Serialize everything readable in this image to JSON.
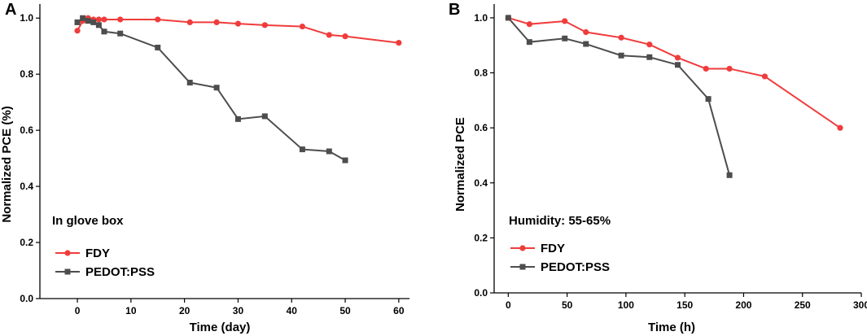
{
  "chart_data": [
    {
      "panel": "A",
      "type": "line",
      "xlabel": "Time (day)",
      "ylabel": "Normalized PCE (%)",
      "xlim": [
        -7,
        62
      ],
      "ylim": [
        0.0,
        1.05
      ],
      "xticks": [
        0,
        10,
        20,
        30,
        40,
        50,
        60
      ],
      "yticks": [
        0.0,
        0.2,
        0.4,
        0.6,
        0.8,
        1.0
      ],
      "xtick_labels": [
        "0",
        "10",
        "20",
        "30",
        "40",
        "50",
        "60"
      ],
      "ytick_labels": [
        "0.0",
        "0.2",
        "0.4",
        "0.6",
        "0.8",
        "1.0"
      ],
      "annotation": "In glove box",
      "legend_position": "bottom-left",
      "series": [
        {
          "name": "FDY",
          "color": "#f03c3c",
          "marker": "circle",
          "x": [
            0,
            1,
            2,
            3,
            4,
            5,
            8,
            15,
            21,
            26,
            30,
            35,
            42,
            47,
            50,
            60
          ],
          "y": [
            0.955,
            0.99,
            1.0,
            0.995,
            0.995,
            0.995,
            0.995,
            0.995,
            0.985,
            0.985,
            0.98,
            0.975,
            0.97,
            0.94,
            0.935,
            0.912
          ]
        },
        {
          "name": "PEDOT:PSS",
          "color": "#4d4d4d",
          "marker": "square",
          "x": [
            0,
            1,
            2,
            3,
            4,
            5,
            8,
            15,
            21,
            26,
            30,
            35,
            42,
            47,
            50
          ],
          "y": [
            0.985,
            1.0,
            0.99,
            0.985,
            0.975,
            0.952,
            0.945,
            0.895,
            0.77,
            0.752,
            0.64,
            0.65,
            0.532,
            0.525,
            0.493
          ]
        }
      ]
    },
    {
      "panel": "B",
      "type": "line",
      "xlabel": "Time (h)",
      "ylabel": "Normalized PCE",
      "xlim": [
        -12,
        300
      ],
      "ylim": [
        0.0,
        1.05
      ],
      "xticks": [
        0,
        50,
        100,
        150,
        200,
        250,
        300
      ],
      "yticks": [
        0.0,
        0.2,
        0.4,
        0.6,
        0.8,
        1.0
      ],
      "xtick_labels": [
        "0",
        "50",
        "100",
        "150",
        "200",
        "250",
        "300"
      ],
      "ytick_labels": [
        "0.0",
        "0.2",
        "0.4",
        "0.6",
        "0.8",
        "1.0"
      ],
      "annotation": "Humidity: 55-65%",
      "legend_position": "bottom-left",
      "series": [
        {
          "name": "FDY",
          "color": "#f03c3c",
          "marker": "circle",
          "x": [
            0,
            18,
            48,
            66,
            96,
            120,
            144,
            168,
            188,
            218,
            282
          ],
          "y": [
            1.0,
            0.977,
            0.988,
            0.948,
            0.928,
            0.903,
            0.855,
            0.815,
            0.815,
            0.787,
            0.6
          ]
        },
        {
          "name": "PEDOT:PSS",
          "color": "#4d4d4d",
          "marker": "square",
          "x": [
            0,
            18,
            48,
            66,
            96,
            120,
            144,
            170,
            188
          ],
          "y": [
            1.0,
            0.912,
            0.925,
            0.905,
            0.863,
            0.857,
            0.829,
            0.705,
            0.428
          ]
        }
      ]
    }
  ]
}
